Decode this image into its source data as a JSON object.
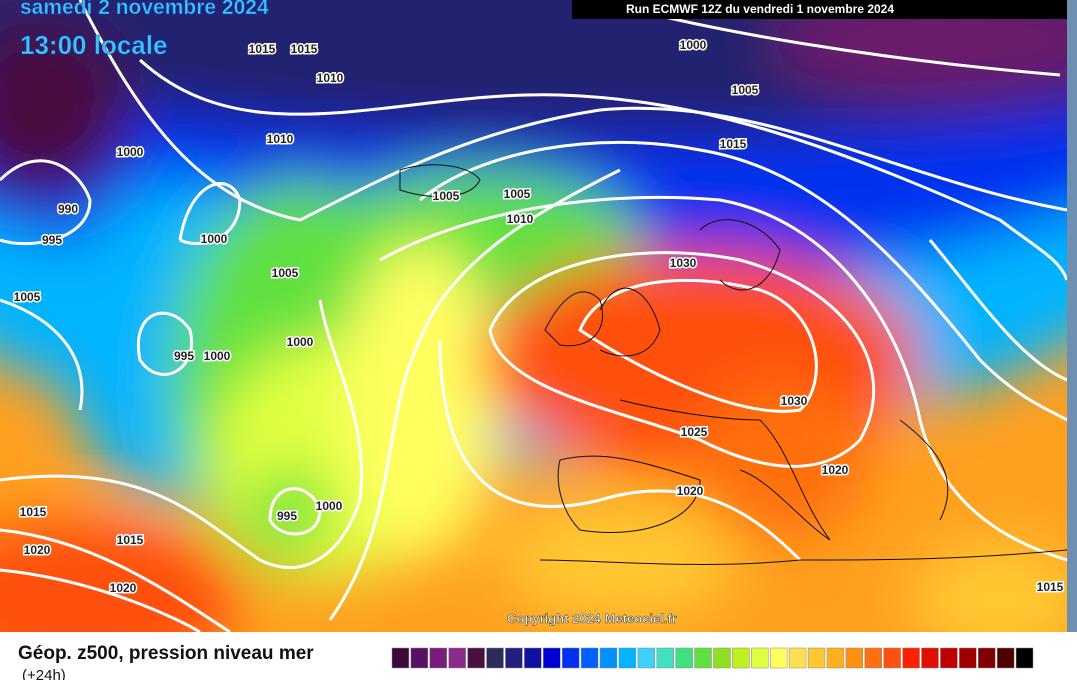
{
  "header": {
    "date": "samedi 2 novembre 2024",
    "time": "13:00 locale",
    "run": "Run ECMWF 12Z du vendredi 1 novembre 2024"
  },
  "isobar_labels": [
    "1015",
    "1015",
    "1010",
    "1000",
    "1005",
    "1015",
    "1000",
    "1010",
    "990",
    "995",
    "1000",
    "1005",
    "1005",
    "1010",
    "1030",
    "1005",
    "1005",
    "1000",
    "995",
    "1000",
    "1030",
    "1025",
    "1020",
    "1020",
    "1000",
    "995",
    "1015",
    "1020",
    "1015",
    "1020",
    "1015"
  ],
  "copyright": "Copyright 2024 Meteociel.fr",
  "footer": {
    "title": "Géop. z500, pression niveau mer",
    "subtitle": "(+24h)"
  },
  "color_scale": [
    "#3a0a3a",
    "#5a1060",
    "#7a1c7c",
    "#8c2a8c",
    "#4a1040",
    "#2c2c5c",
    "#202080",
    "#1010a0",
    "#0000d0",
    "#0030f0",
    "#0060ff",
    "#0090ff",
    "#00b4ff",
    "#40d0ff",
    "#40e0c0",
    "#40e080",
    "#60e040",
    "#90e020",
    "#c0f020",
    "#e0ff40",
    "#ffff60",
    "#ffe050",
    "#ffc830",
    "#ffb020",
    "#ff9010",
    "#ff7010",
    "#ff5010",
    "#ff2000",
    "#e01000",
    "#c00000",
    "#a00000",
    "#800000",
    "#500000",
    "#000000"
  ]
}
